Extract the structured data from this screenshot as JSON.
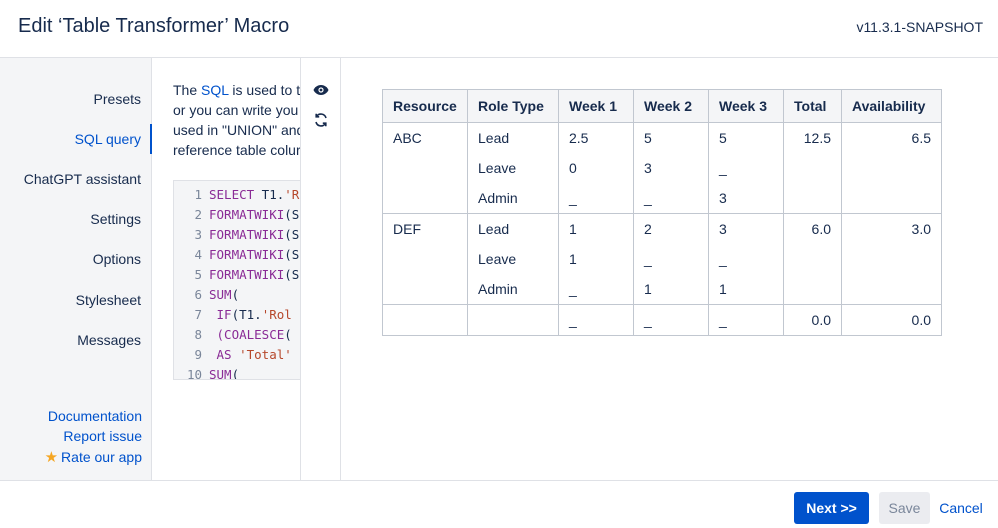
{
  "dialog": {
    "title": "Edit ‘Table Transformer’ Macro",
    "version": "v11.3.1-SNAPSHOT"
  },
  "sidebar": {
    "items": [
      {
        "label": "Presets",
        "active": false
      },
      {
        "label": "SQL query",
        "active": true
      },
      {
        "label": "ChatGPT assistant",
        "active": false
      },
      {
        "label": "Settings",
        "active": false
      },
      {
        "label": "Options",
        "active": false
      },
      {
        "label": "Stylesheet",
        "active": false
      },
      {
        "label": "Messages",
        "active": false
      }
    ],
    "links": {
      "documentation": "Documentation",
      "report_issue": "Report issue",
      "rate_app": "Rate our app"
    }
  },
  "description": {
    "line1_pre": "The ",
    "line1_link": "SQL",
    "line1_post": " is used to tr",
    "line2": "or you can write you",
    "line3": "used in \"UNION\" and",
    "line4": "reference table colur"
  },
  "code": {
    "lines": [
      {
        "n": "1",
        "kw": "SELECT",
        "rest": " T1.",
        "str": "'R"
      },
      {
        "n": "2",
        "kw": "FORMATWIKI",
        "rest": "(S",
        "str": ""
      },
      {
        "n": "3",
        "kw": "FORMATWIKI",
        "rest": "(S",
        "str": ""
      },
      {
        "n": "4",
        "kw": "FORMATWIKI",
        "rest": "(S",
        "str": ""
      },
      {
        "n": "5",
        "kw": "FORMATWIKI",
        "rest": "(S",
        "str": ""
      },
      {
        "n": "6",
        "kw": "SUM",
        "rest": "(",
        "str": ""
      },
      {
        "n": "7",
        "kw": "  IF",
        "rest": "(T1.",
        "str": "'Rol"
      },
      {
        "n": "8",
        "kw": "  (COALESCE",
        "rest": "(",
        "str": ""
      },
      {
        "n": "9",
        "kw": "  AS",
        "rest": " ",
        "str": "'Total'"
      },
      {
        "n": "10",
        "kw": "SUM",
        "rest": "(",
        "str": ""
      }
    ]
  },
  "toolbar": {
    "preview_icon": "eye-icon",
    "refresh_icon": "refresh-icon"
  },
  "result_table": {
    "headers": [
      "Resource",
      "Role Type",
      "Week 1",
      "Week 2",
      "Week 3",
      "Total",
      "Availability"
    ],
    "rows": [
      {
        "resource": "ABC",
        "roles": [
          "Lead",
          "Leave",
          "Admin"
        ],
        "week1": [
          "2.5",
          "0",
          "_"
        ],
        "week2": [
          "5",
          "3",
          "_"
        ],
        "week3": [
          "5",
          "_",
          "3"
        ],
        "total": "12.5",
        "availability": "6.5"
      },
      {
        "resource": "DEF",
        "roles": [
          "Lead",
          "Leave",
          "Admin"
        ],
        "week1": [
          "1",
          "1",
          "_"
        ],
        "week2": [
          "2",
          "_",
          "1"
        ],
        "week3": [
          "3",
          "_",
          "1"
        ],
        "total": "6.0",
        "availability": "3.0"
      },
      {
        "resource": "",
        "roles": [
          ""
        ],
        "week1": [
          "_"
        ],
        "week2": [
          "_"
        ],
        "week3": [
          "_"
        ],
        "total": "0.0",
        "availability": "0.0"
      }
    ]
  },
  "footer": {
    "next_label": "Next >>",
    "save_label": "Save",
    "cancel_label": "Cancel"
  },
  "colors": {
    "accent": "#0052cc",
    "sidebar_bg": "#f4f5f7",
    "border": "#dfe1e6",
    "star": "#f5a623"
  }
}
